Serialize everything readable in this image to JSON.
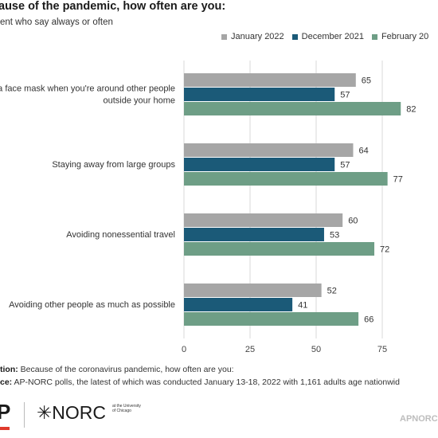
{
  "chart_data": {
    "type": "bar",
    "orientation": "horizontal",
    "title": "ause of the pandemic, how often are you:",
    "subtitle": "ent who say always or often",
    "categories": [
      [
        "g a face mask when you're around other people",
        "outside your home"
      ],
      [
        "Staying away from large groups"
      ],
      [
        "Avoiding nonessential travel"
      ],
      [
        "Avoiding other people as much as possible"
      ]
    ],
    "series": [
      {
        "name": "January 2022",
        "color": "#a6a6a6",
        "values": [
          65,
          64,
          60,
          52
        ]
      },
      {
        "name": "December 2021",
        "color": "#1b5a78",
        "values": [
          57,
          57,
          53,
          41
        ]
      },
      {
        "name": "February 20",
        "color": "#6e9e86",
        "values": [
          82,
          77,
          72,
          66
        ]
      }
    ],
    "xlim": [
      0,
      100
    ],
    "xticks": [
      0,
      25,
      50,
      75
    ],
    "grid": true,
    "legend_position": "top-right"
  },
  "footnote": {
    "question_label": "tion:",
    "question_text": "Because of the coronavirus pandemic, how often are you:",
    "source_label": "ce:",
    "source_text": "AP-NORC polls, the latest of which was conducted January 13-18, 2022 with 1,161 adults age nationwid"
  },
  "branding": {
    "ap": "P",
    "norc": "✳NORC",
    "norc_sub": "at the University of Chicago",
    "watermark": "APNORC"
  }
}
